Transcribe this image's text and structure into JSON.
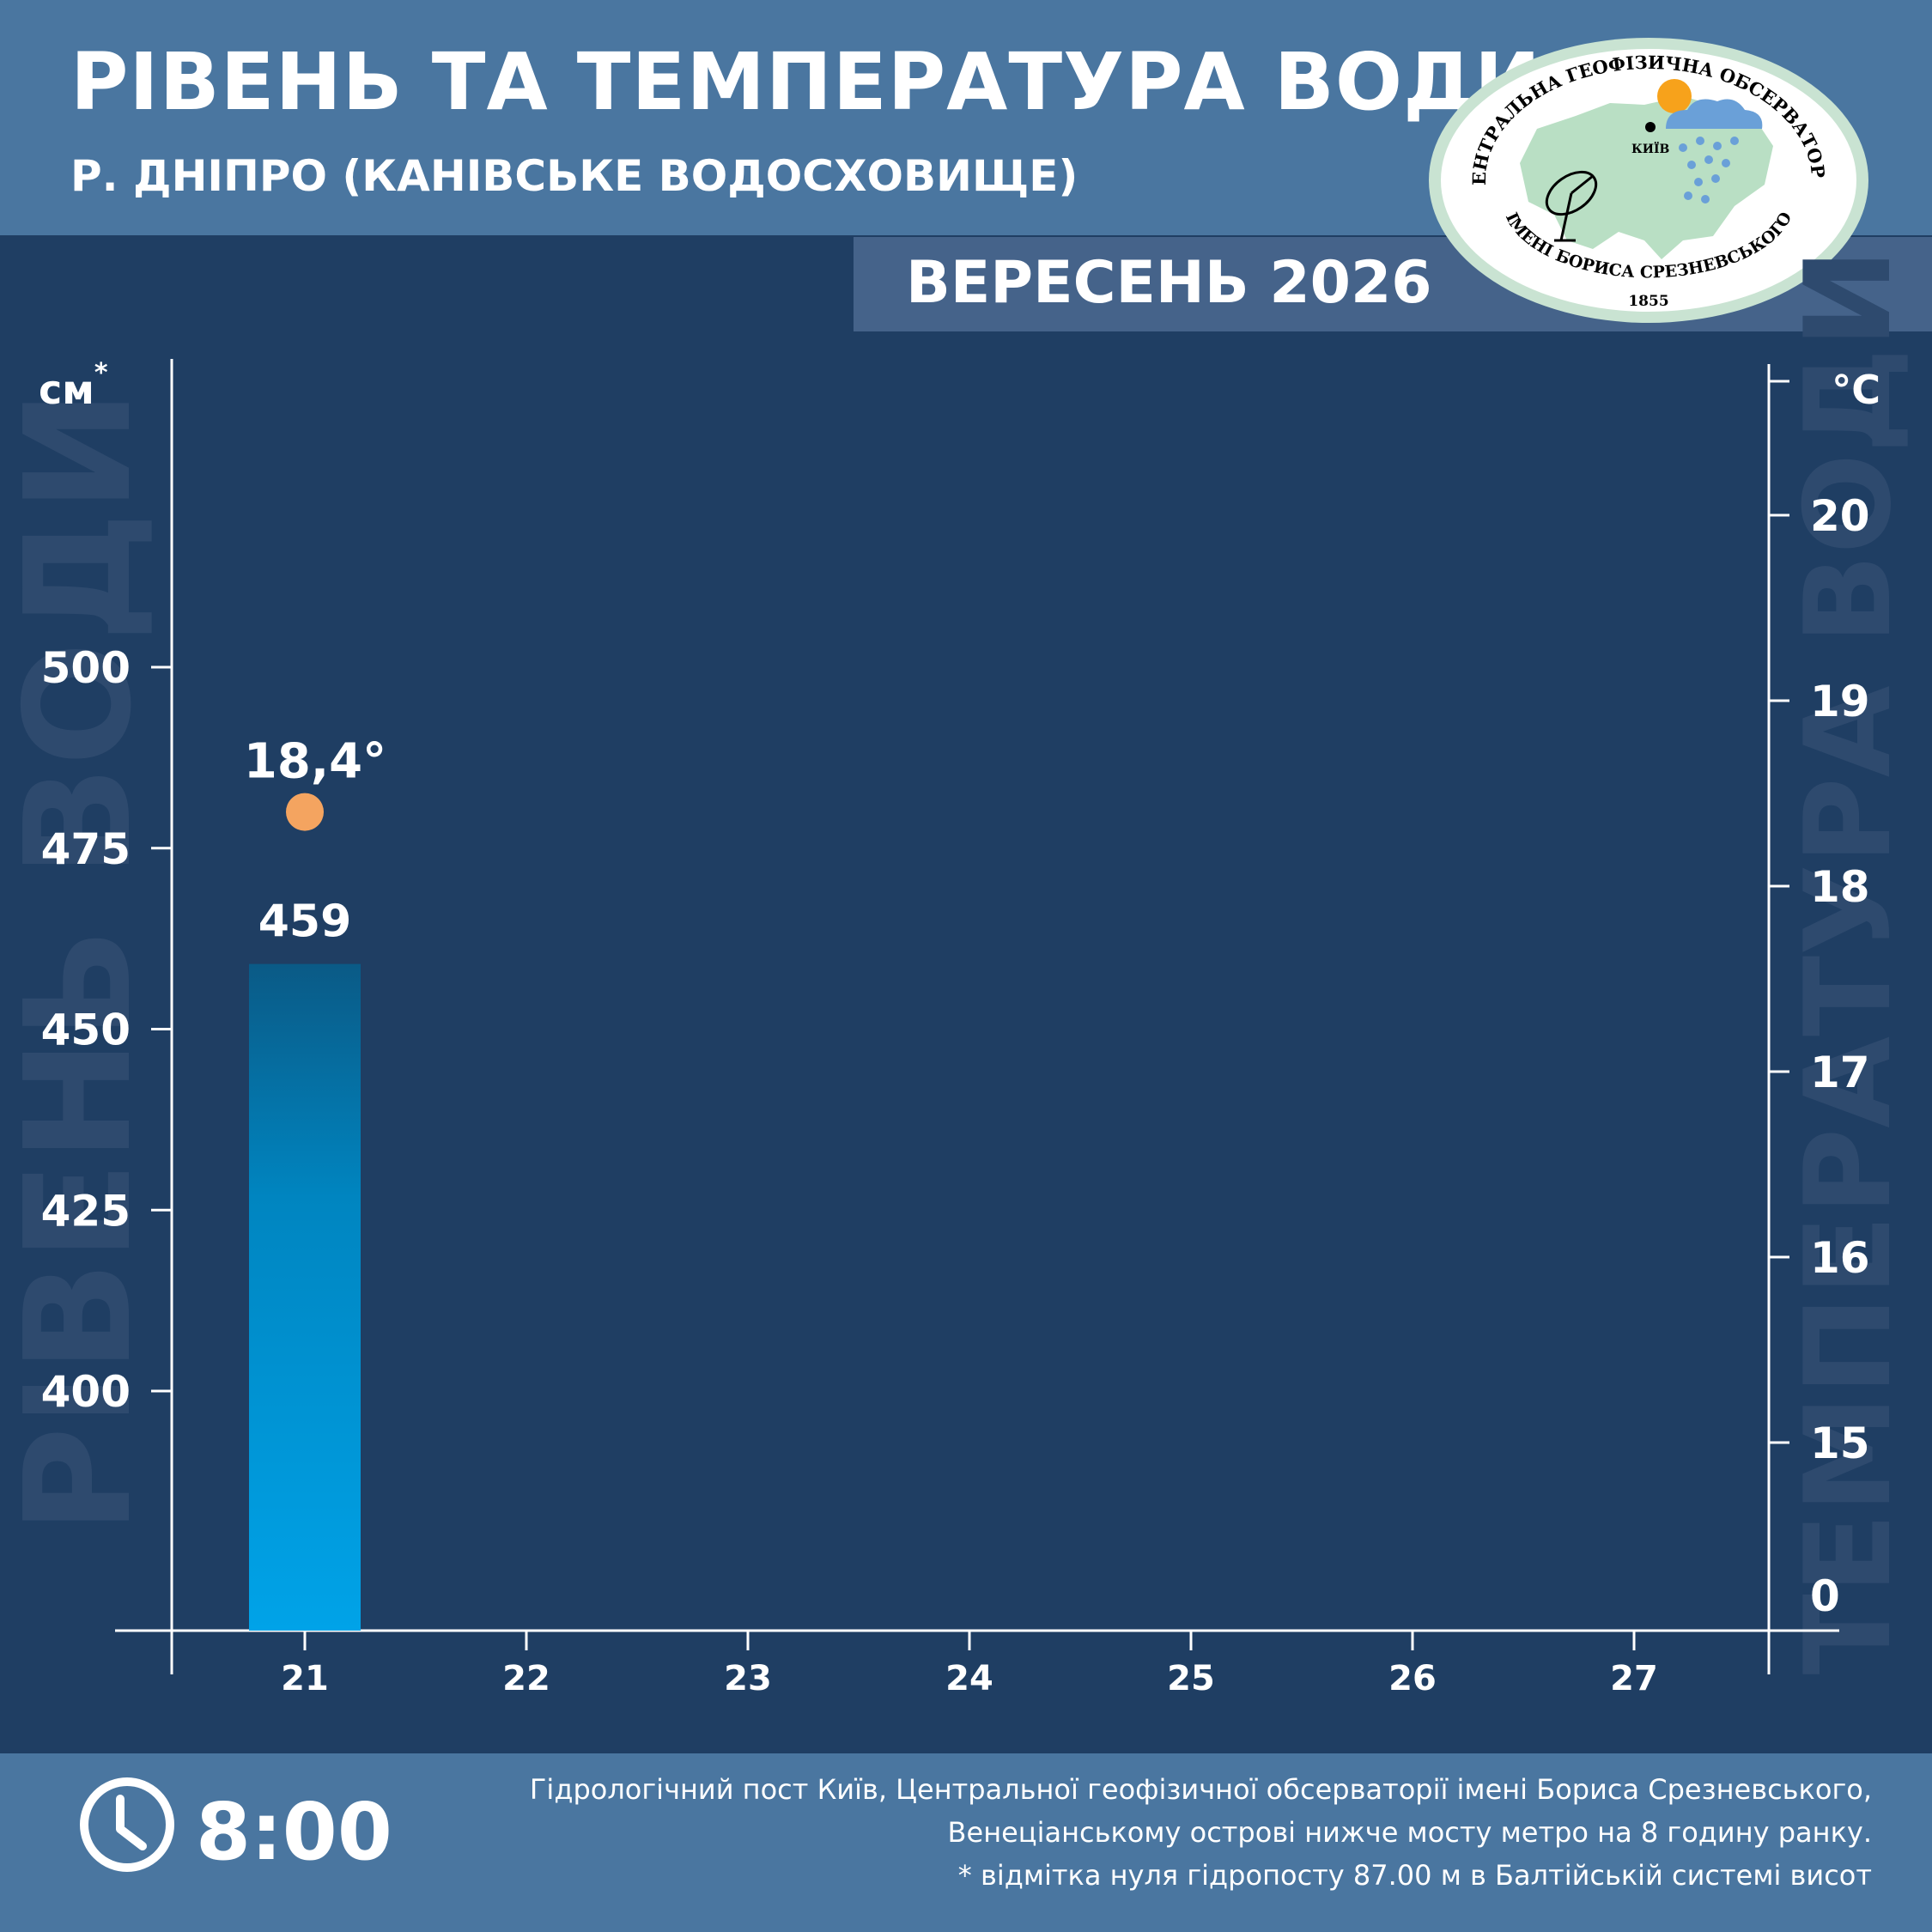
{
  "header": {
    "title": "РІВЕНЬ ТА ТЕМПЕРАТУРА ВОДИ",
    "subtitle": "Р. ДНІПРО (КАНІВСЬКЕ ВОДОСХОВИЩЕ)",
    "month": "ВЕРЕСЕНЬ 2026"
  },
  "logo": {
    "top_text": "ЦЕНТРАЛЬНА ГЕОФІЗИЧНА ОБСЕРВАТОРІЯ",
    "bottom_text": "ІМЕНІ БОРИСА СРЕЗНЕВСЬКОГО",
    "year": "1855",
    "city": "КИЇВ"
  },
  "footer": {
    "time": "8:00",
    "note1": "Гідрологічний пост Київ, Центральної геофізичної обсерваторії імені Бориса Срезневського,",
    "note2": "Венеціанському острові нижче мосту метро  на 8 годину ранку.",
    "note3": "* відмітка нуля гідропосту 87.00 м в Балтійській системі висот"
  },
  "colors": {
    "background": "#1f3e63",
    "header": "#4a76a0",
    "bar_top": "#0a5a86",
    "bar_bottom": "#00a3e8",
    "temp_marker": "#f4a460",
    "watermark": "#2e4a6e"
  },
  "chart_data": {
    "type": "bar",
    "categories": [
      "21",
      "22",
      "23",
      "24",
      "25",
      "26",
      "27"
    ],
    "level": {
      "axis_label": "РІВЕНЬ ВОДИ",
      "unit": "см",
      "unit_mark": "*",
      "ticks": [
        400,
        425,
        450,
        475,
        500
      ],
      "values": [
        459,
        null,
        null,
        null,
        null,
        null,
        null
      ],
      "value_labels": [
        "459",
        "",
        "",
        "",
        "",
        "",
        ""
      ]
    },
    "temperature": {
      "axis_label": "ТЕМПЕРАТУРА ВОДИ",
      "unit": "°C",
      "ticks": [
        0,
        15,
        16,
        17,
        18,
        19,
        20
      ],
      "values": [
        18.4,
        null,
        null,
        null,
        null,
        null,
        null
      ],
      "value_labels": [
        "18,4°",
        "",
        "",
        "",
        "",
        "",
        ""
      ]
    }
  }
}
